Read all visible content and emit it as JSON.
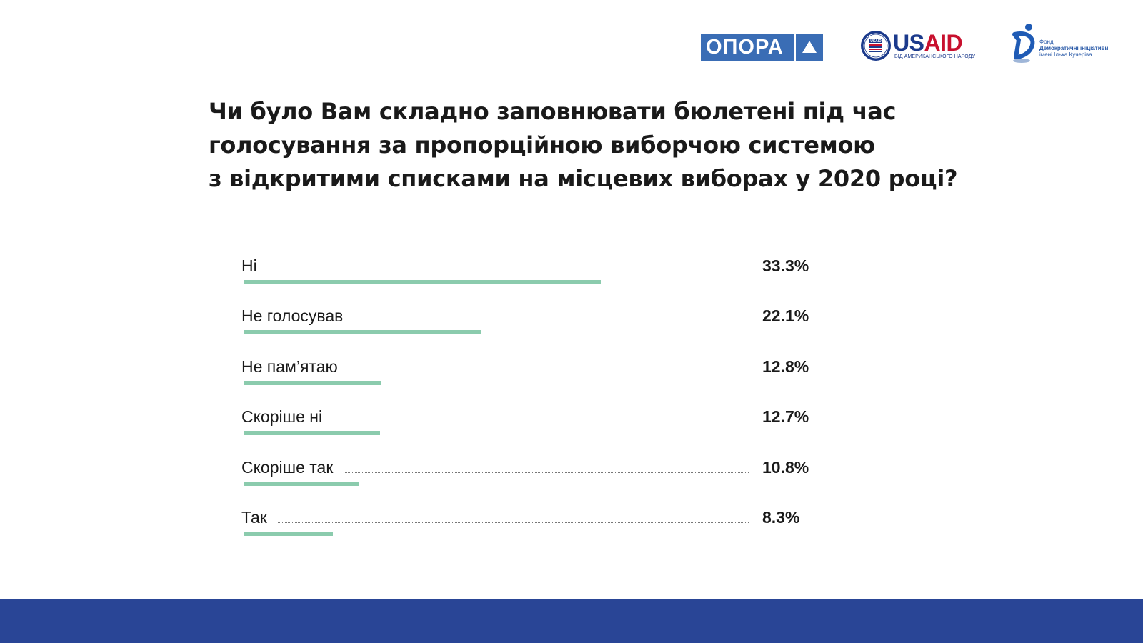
{
  "logos": {
    "opora_text": "ОПОРА",
    "usaid_us": "US",
    "usaid_aid": "AID",
    "usaid_tagline": "ВІД АМЕРИКАНСЬКОГО НАРОДУ",
    "usaid_seal_text": "USAID",
    "fdi_line1": "Фонд",
    "fdi_line2": "Демократичні ініціативи",
    "fdi_line3": "імені Ілька Кучеріва"
  },
  "colors": {
    "bar": "#8bcbad",
    "footer": "#294596",
    "opora_blue": "#3a6db5",
    "usaid_blue": "#1b3a8c",
    "usaid_red": "#c8102e"
  },
  "chart_data": {
    "type": "bar",
    "orientation": "horizontal",
    "title_lines": [
      "Чи було Вам складно заповнювати бюлетені під час",
      "голосування за пропорційною виборчою системою",
      "з відкритими списками на місцевих виборах у 2020 році?"
    ],
    "categories": [
      "Ні",
      "Не голосував",
      "Не пам’ятаю",
      "Скоріше ні",
      "Скоріше так",
      "Так"
    ],
    "values": [
      33.3,
      22.1,
      12.8,
      12.7,
      10.8,
      8.3
    ],
    "value_labels": [
      "33.3%",
      "22.1%",
      "12.8%",
      "12.7%",
      "10.8%",
      "8.3%"
    ],
    "unit": "%",
    "xlim": [
      0,
      50
    ],
    "grid": false,
    "legend": "none"
  }
}
